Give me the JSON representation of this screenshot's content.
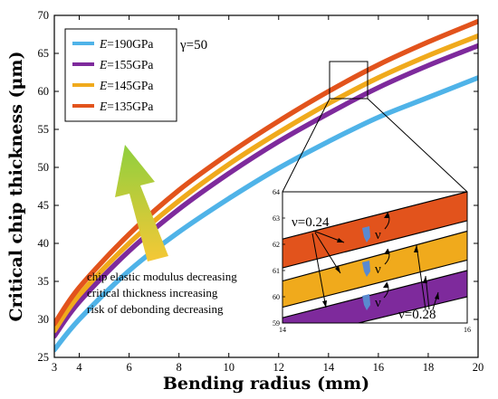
{
  "chart_data": {
    "type": "line",
    "xlabel": "Bending radius (mm)",
    "ylabel": "Critical chip thickness (μm)",
    "xlim": [
      3,
      20
    ],
    "ylim": [
      25,
      70
    ],
    "xticks": [
      "3",
      "4",
      "6",
      "8",
      "10",
      "12",
      "14",
      "16",
      "18",
      "20"
    ],
    "yticks": [
      "25",
      "30",
      "35",
      "40",
      "45",
      "50",
      "55",
      "60",
      "65",
      "70"
    ],
    "gamma_label": "γ=50",
    "series": [
      {
        "name": "E=190GPa",
        "legend_prefix": "E",
        "legend_suffix": "=190GPa",
        "color": "#4fb3e8",
        "x": [
          3,
          4,
          6,
          8,
          10,
          12,
          14,
          16,
          18,
          20
        ],
        "y": [
          26.0,
          30.0,
          36.4,
          41.5,
          45.9,
          49.9,
          53.4,
          56.6,
          59.2,
          61.8
        ]
      },
      {
        "name": "E=155GPa",
        "legend_prefix": "E",
        "legend_suffix": "=155GPa",
        "color": "#7e2a9c",
        "x": [
          3,
          4,
          6,
          8,
          10,
          12,
          14,
          16,
          18,
          20
        ],
        "y": [
          27.8,
          32.3,
          39.0,
          44.5,
          49.2,
          53.4,
          57.1,
          60.5,
          63.4,
          66.0
        ]
      },
      {
        "name": "E=145GPa",
        "legend_prefix": "E",
        "legend_suffix": "=145GPa",
        "color": "#f0aa1c",
        "x": [
          3,
          4,
          6,
          8,
          10,
          12,
          14,
          16,
          18,
          20
        ],
        "y": [
          28.5,
          33.2,
          40.0,
          45.6,
          50.4,
          54.6,
          58.4,
          61.8,
          64.7,
          67.3
        ]
      },
      {
        "name": "E=135GPa",
        "legend_prefix": "E",
        "legend_suffix": "=135GPa",
        "color": "#e2531c",
        "x": [
          3,
          4,
          6,
          8,
          10,
          12,
          14,
          16,
          18,
          20
        ],
        "y": [
          29.4,
          34.2,
          41.2,
          47.0,
          51.8,
          56.1,
          60.0,
          63.5,
          66.5,
          69.2
        ]
      }
    ],
    "inset": {
      "xlim": [
        14,
        16
      ],
      "ylim": [
        59,
        64
      ],
      "xticks": [
        "14",
        "16"
      ],
      "yticks": [
        "59",
        "60",
        "61",
        "62",
        "63",
        "64"
      ],
      "nu_low_label": "ν=0.24",
      "nu_high_label": "ν=0.28",
      "nu_symbol": "ν",
      "bands": [
        {
          "series": "E=135GPa",
          "color": "#e2531c",
          "y_top": [
            62.2,
            64.0
          ],
          "y_bot": [
            61.1,
            62.9
          ]
        },
        {
          "series": "E=145GPa",
          "color": "#f0aa1c",
          "y_top": [
            60.6,
            62.5
          ],
          "y_bot": [
            59.6,
            61.4
          ]
        },
        {
          "series": "E=155GPa",
          "color": "#7e2a9c",
          "y_top": [
            59.2,
            61.0
          ],
          "y_bot": [
            58.3,
            60.0
          ]
        }
      ]
    },
    "annotation": [
      "chip elastic modulus decreasing",
      "critical thickness increasing",
      "risk of debonding decreasing"
    ]
  }
}
